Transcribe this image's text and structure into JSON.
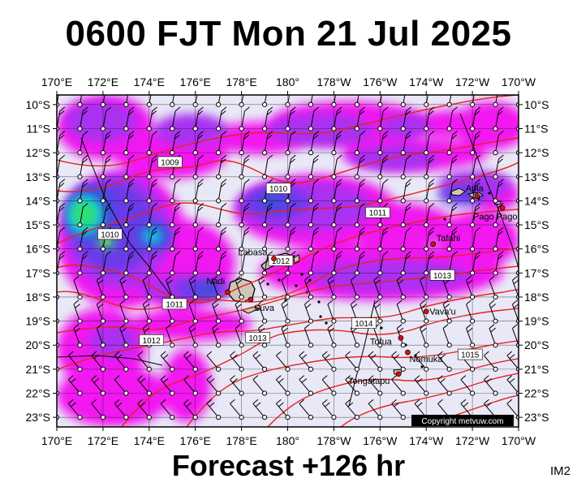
{
  "title": "0600 FJT Mon 21 Jul 2025",
  "subtitle": "Forecast +126 hr",
  "map_code": "IM2",
  "copyright": "Copyright metvuw.com",
  "axes": {
    "lon_labels": [
      "170°E",
      "172°E",
      "174°E",
      "176°E",
      "178°E",
      "180°",
      "178°W",
      "176°W",
      "174°W",
      "172°W",
      "170°W"
    ],
    "lat_labels": [
      "10°S",
      "11°S",
      "12°S",
      "13°S",
      "14°S",
      "15°S",
      "16°S",
      "17°S",
      "18°S",
      "19°S",
      "20°S",
      "21°S",
      "22°S",
      "23°S"
    ]
  },
  "places": [
    {
      "name": "Apia",
      "lon": -171.8,
      "lat": -13.8
    },
    {
      "name": "Pago Pago",
      "lon": -170.7,
      "lat": -14.3
    },
    {
      "name": "Tafahi",
      "lon": -173.7,
      "lat": -15.8
    },
    {
      "name": "Labasa",
      "lon": 179.4,
      "lat": -16.4
    },
    {
      "name": "Nadi",
      "lon": 177.4,
      "lat": -17.8
    },
    {
      "name": "Suva",
      "lon": 178.4,
      "lat": -18.1
    },
    {
      "name": "Vava'u",
      "lon": -174.0,
      "lat": -18.6
    },
    {
      "name": "Tofua",
      "lon": -175.1,
      "lat": -19.7
    },
    {
      "name": "Nomuka",
      "lon": -174.8,
      "lat": -20.3
    },
    {
      "name": "Tongatapu",
      "lon": -175.2,
      "lat": -21.2
    }
  ],
  "isobars": [
    {
      "label": "1009",
      "lon": 174.9,
      "lat": -12.4
    },
    {
      "label": "1010",
      "lon": 172.3,
      "lat": -15.4
    },
    {
      "label": "1010",
      "lon": 179.6,
      "lat": -13.5
    },
    {
      "label": "1011",
      "lon": -176.1,
      "lat": -14.5
    },
    {
      "label": "1011",
      "lon": 175.1,
      "lat": -18.3
    },
    {
      "label": "1012",
      "lon": 179.7,
      "lat": -16.5
    },
    {
      "label": "1012",
      "lon": 174.1,
      "lat": -19.8
    },
    {
      "label": "1013",
      "lon": -173.3,
      "lat": -17.1
    },
    {
      "label": "1013",
      "lon": 178.7,
      "lat": -19.7
    },
    {
      "label": "1014",
      "lon": -176.7,
      "lat": -19.1
    },
    {
      "label": "1015",
      "lon": -172.1,
      "lat": -20.4
    }
  ],
  "colors": {
    "background": "#e8e8f6",
    "magenta": "#f20af0",
    "purple": "#a830f0",
    "violet": "#6a3ae8",
    "blue": "#3b50d8",
    "cyan": "#18c8e8",
    "green": "#2ee070",
    "yellow": "#e8f020",
    "isobar": "#e8221e",
    "place": "#d81010"
  }
}
